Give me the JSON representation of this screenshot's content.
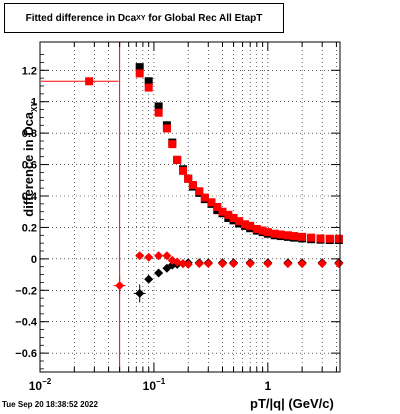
{
  "chart_data": {
    "type": "scatter",
    "title": "Fitted difference in Dca",
    "title_subscript": "XY",
    "title_suffix": " for Global Rec All EtapT",
    "xlabel": "pT/|q| (GeV/c)",
    "ylabel": "difference in Dca",
    "ylabel_subscript": "XY",
    "xscale": "log",
    "xlim": [
      0.01,
      4.3
    ],
    "ylim": [
      -0.72,
      1.38
    ],
    "grid": true,
    "x_tick_labels": [
      {
        "value": 0.01,
        "base": "10",
        "exp": "−2"
      },
      {
        "value": 0.1,
        "base": "10",
        "exp": "−1"
      },
      {
        "value": 1,
        "base": "1",
        "exp": ""
      }
    ],
    "y_ticks": [
      -0.6,
      -0.4,
      -0.2,
      0,
      0.2,
      0.4,
      0.6,
      0.8,
      1,
      1.2
    ],
    "y_tick_labels": [
      "−0.6",
      "−0.4",
      "−0.2",
      "0",
      "0.2",
      "0.4",
      "0.6",
      "0.8",
      "1",
      "1.2"
    ],
    "vertical_line_x": 0.05,
    "series": [
      {
        "marker": "square",
        "color": "#000000",
        "points": [
          [
            0.075,
            1.22
          ],
          [
            0.09,
            1.13
          ],
          [
            0.11,
            0.97
          ],
          [
            0.13,
            0.85
          ],
          [
            0.145,
            0.74
          ],
          [
            0.16,
            0.63
          ],
          [
            0.18,
            0.57
          ],
          [
            0.2,
            0.51
          ],
          [
            0.22,
            0.46
          ],
          [
            0.25,
            0.42
          ],
          [
            0.28,
            0.38
          ],
          [
            0.32,
            0.35
          ],
          [
            0.36,
            0.31
          ],
          [
            0.4,
            0.29
          ],
          [
            0.45,
            0.26
          ],
          [
            0.5,
            0.245
          ],
          [
            0.56,
            0.225
          ],
          [
            0.63,
            0.21
          ],
          [
            0.7,
            0.195
          ],
          [
            0.8,
            0.18
          ],
          [
            0.9,
            0.17
          ],
          [
            1.0,
            0.16
          ],
          [
            1.15,
            0.15
          ],
          [
            1.3,
            0.145
          ],
          [
            1.5,
            0.14
          ],
          [
            1.7,
            0.135
          ],
          [
            2.0,
            0.13
          ],
          [
            2.4,
            0.125
          ],
          [
            2.9,
            0.122
          ],
          [
            3.5,
            0.12
          ],
          [
            4.2,
            0.12
          ]
        ]
      },
      {
        "marker": "square",
        "color": "#ff0000",
        "points": [
          [
            0.027,
            1.13
          ],
          [
            0.075,
            1.18
          ],
          [
            0.09,
            1.09
          ],
          [
            0.11,
            0.93
          ],
          [
            0.13,
            0.83
          ],
          [
            0.145,
            0.73
          ],
          [
            0.16,
            0.63
          ],
          [
            0.18,
            0.56
          ],
          [
            0.2,
            0.51
          ],
          [
            0.22,
            0.47
          ],
          [
            0.25,
            0.43
          ],
          [
            0.28,
            0.39
          ],
          [
            0.32,
            0.36
          ],
          [
            0.36,
            0.33
          ],
          [
            0.4,
            0.3
          ],
          [
            0.45,
            0.28
          ],
          [
            0.5,
            0.26
          ],
          [
            0.56,
            0.24
          ],
          [
            0.63,
            0.22
          ],
          [
            0.7,
            0.21
          ],
          [
            0.8,
            0.19
          ],
          [
            0.9,
            0.18
          ],
          [
            1.0,
            0.17
          ],
          [
            1.15,
            0.16
          ],
          [
            1.3,
            0.155
          ],
          [
            1.5,
            0.15
          ],
          [
            1.7,
            0.145
          ],
          [
            2.0,
            0.14
          ],
          [
            2.4,
            0.135
          ],
          [
            2.9,
            0.13
          ],
          [
            3.5,
            0.128
          ],
          [
            4.2,
            0.128
          ]
        ]
      },
      {
        "marker": "circle",
        "color": "#000000",
        "points": [
          [
            0.075,
            -0.22
          ],
          [
            0.09,
            -0.13
          ],
          [
            0.11,
            -0.09
          ],
          [
            0.13,
            -0.06
          ],
          [
            0.145,
            -0.04
          ],
          [
            0.16,
            -0.035
          ],
          [
            0.18,
            -0.03
          ],
          [
            0.2,
            -0.025
          ],
          [
            0.25,
            -0.025
          ],
          [
            0.3,
            -0.025
          ],
          [
            0.4,
            -0.025
          ],
          [
            0.5,
            -0.025
          ],
          [
            0.7,
            -0.025
          ],
          [
            1.0,
            -0.025
          ],
          [
            1.5,
            -0.025
          ],
          [
            2.0,
            -0.025
          ],
          [
            3.0,
            -0.025
          ],
          [
            4.2,
            -0.025
          ]
        ]
      },
      {
        "marker": "circle",
        "color": "#ff0000",
        "points": [
          [
            0.05,
            -0.17
          ],
          [
            0.075,
            0.02
          ],
          [
            0.09,
            0.01
          ],
          [
            0.11,
            0.02
          ],
          [
            0.13,
            0.02
          ],
          [
            0.145,
            -0.01
          ],
          [
            0.16,
            -0.02
          ],
          [
            0.18,
            -0.03
          ],
          [
            0.2,
            -0.035
          ],
          [
            0.25,
            -0.03
          ],
          [
            0.3,
            -0.03
          ],
          [
            0.4,
            -0.03
          ],
          [
            0.5,
            -0.03
          ],
          [
            0.7,
            -0.03
          ],
          [
            1.0,
            -0.03
          ],
          [
            1.5,
            -0.03
          ],
          [
            2.0,
            -0.03
          ],
          [
            3.0,
            -0.03
          ],
          [
            4.2,
            -0.03
          ]
        ]
      }
    ]
  },
  "timestamp": "Tue Sep 20 18:38:52 2022"
}
